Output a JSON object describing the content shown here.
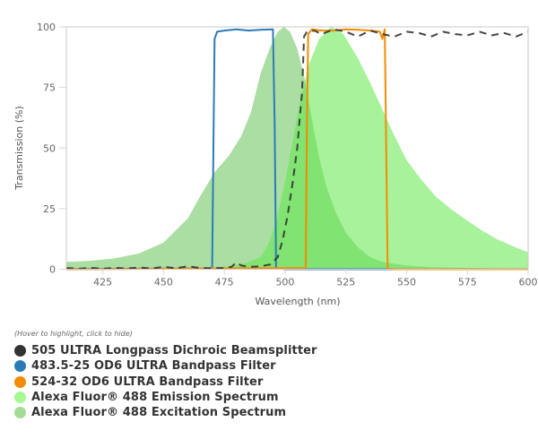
{
  "chart_data": {
    "type": "area",
    "title": "",
    "xlabel": "Wavelength (nm)",
    "ylabel": "Transmission (%)",
    "xlim": [
      410,
      600
    ],
    "ylim": [
      0,
      100
    ],
    "x_ticks": [
      "425",
      "450",
      "475",
      "500",
      "525",
      "550",
      "575",
      "600"
    ],
    "y_ticks": [
      "0",
      "25",
      "50",
      "75",
      "100"
    ],
    "grid": false,
    "legend_placement": "bottom-left",
    "legend_hint": "(Hover to highlight, click to hide)",
    "series": [
      {
        "name": "505 ULTRA Longpass Dichroic Beamsplitter",
        "color": "#333333",
        "style": "dashed-line",
        "x": [
          410,
          415,
          420,
          425,
          430,
          435,
          440,
          445,
          450,
          455,
          460,
          465,
          470,
          475,
          478,
          480,
          482,
          485,
          490,
          494,
          497,
          499,
          501,
          503,
          505,
          506,
          507,
          507.8,
          509,
          512,
          515,
          520,
          525,
          530,
          535,
          540,
          545,
          550,
          555,
          560,
          565,
          570,
          575,
          580,
          585,
          590,
          595,
          600
        ],
        "y": [
          0.5,
          0.2,
          0.6,
          0.2,
          0.6,
          0.3,
          0.7,
          0.3,
          1.0,
          0.4,
          1.2,
          0.5,
          0.4,
          0.5,
          1.0,
          2.8,
          1.5,
          1.0,
          1.2,
          2.0,
          5,
          12,
          22,
          35,
          50,
          62,
          73,
          96,
          98,
          98.5,
          97,
          99,
          98,
          96,
          98.5,
          97,
          96,
          98,
          97.5,
          96,
          98,
          97,
          96.5,
          98,
          96.5,
          97.5,
          96,
          98
        ]
      },
      {
        "name": "483.5-25 OD6 ULTRA Bandpass Filter",
        "color": "#2b7bb9",
        "style": "line",
        "x": [
          410,
          470,
          470.5,
          471,
          472,
          475,
          480,
          485,
          490,
          495,
          495.7,
          496.3,
          500,
          600
        ],
        "y": [
          0.1,
          0.3,
          50,
          95,
          98,
          98.5,
          99,
          98.5,
          98.8,
          99,
          60,
          0.5,
          0,
          0
        ]
      },
      {
        "name": "524-32 OD6 ULTRA Bandpass Filter",
        "color": "#f28c00",
        "style": "line",
        "x": [
          410,
          508.5,
          509,
          509.5,
          511,
          515,
          520,
          525,
          530,
          535,
          539,
          540,
          541,
          541.6,
          542.2,
          545,
          600
        ],
        "y": [
          0,
          0.5,
          60,
          97,
          99,
          98.5,
          98.5,
          99,
          98.8,
          98.5,
          98,
          95,
          99,
          50,
          0.3,
          0,
          0
        ]
      },
      {
        "name": "Alexa Fluor® 488 Emission Spectrum",
        "color": "#a6f890",
        "style": "area",
        "x": [
          410,
          470,
          480,
          485,
          490,
          493,
          496,
          500,
          503,
          507,
          510,
          514,
          519,
          524,
          530,
          535,
          540,
          545,
          550,
          556,
          562,
          568,
          575,
          581,
          587,
          595,
          600
        ],
        "y": [
          0,
          0.5,
          1.5,
          3,
          5,
          10,
          18,
          36,
          52,
          73,
          85,
          95,
          100,
          97,
          87,
          77,
          66,
          55,
          45,
          37,
          30,
          25,
          20,
          16,
          12.5,
          9,
          7
        ]
      },
      {
        "name": "Alexa Fluor® 488 Excitation Spectrum",
        "color": "#a3dc96",
        "style": "area",
        "x": [
          410,
          420,
          430,
          440,
          450,
          460,
          465,
          471,
          477,
          482,
          486,
          490,
          494,
          497,
          499.5,
          502,
          505,
          508,
          511,
          514,
          517,
          521,
          525,
          530,
          535,
          540,
          550,
          560,
          600
        ],
        "y": [
          3,
          3.5,
          4.5,
          6.5,
          11,
          21,
          30,
          40,
          47,
          55,
          65,
          81,
          92,
          98,
          100,
          98,
          91,
          79,
          62,
          46,
          34,
          23,
          15,
          9,
          5,
          3,
          1.5,
          0.8,
          0.2
        ]
      }
    ]
  }
}
